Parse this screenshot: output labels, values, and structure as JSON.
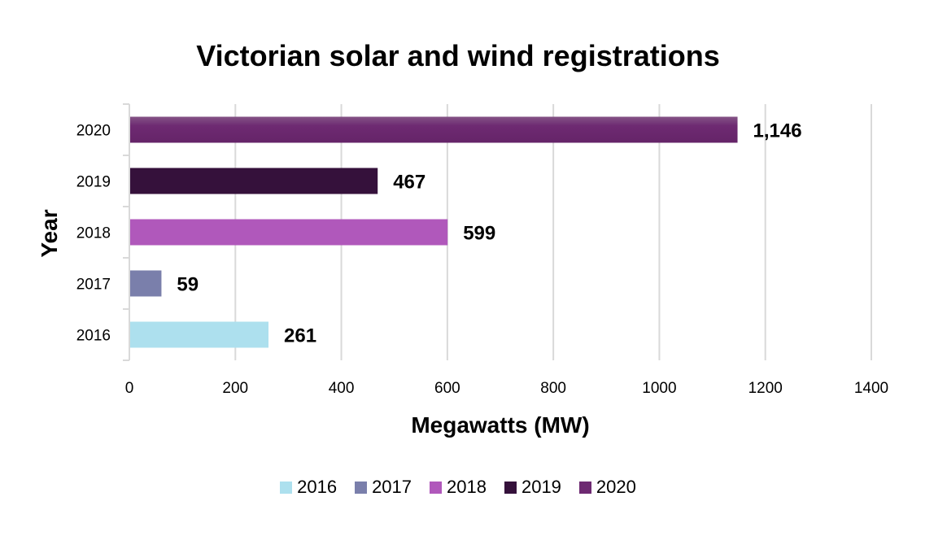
{
  "chart_data": {
    "type": "bar",
    "orientation": "horizontal",
    "title": "Victorian solar and wind registrations",
    "xlabel": "Megawatts (MW)",
    "ylabel": "Year",
    "categories": [
      "2016",
      "2017",
      "2018",
      "2019",
      "2020"
    ],
    "values": [
      261,
      59,
      599,
      467,
      1146
    ],
    "data_labels": [
      "261",
      "59",
      "599",
      "467",
      "1,146"
    ],
    "colors": [
      "#ade0ee",
      "#7a7fab",
      "#b058bb",
      "#35113b",
      "#6e2a72"
    ],
    "xlim": [
      0,
      1400
    ],
    "xticks": [
      "0",
      "200",
      "400",
      "600",
      "800",
      "1000",
      "1200",
      "1400"
    ],
    "grid": "vertical",
    "legend": {
      "position": "bottom",
      "entries": [
        "2016",
        "2017",
        "2018",
        "2019",
        "2020"
      ]
    }
  }
}
